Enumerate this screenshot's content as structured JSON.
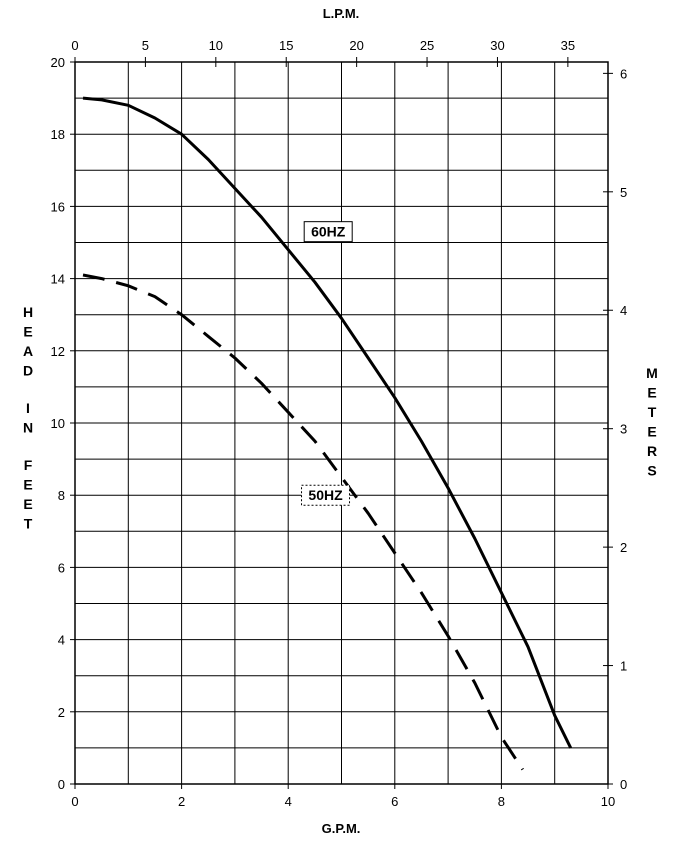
{
  "chart_data": {
    "type": "line",
    "title": "",
    "xlabel": "G.P.M.",
    "x2label": "L.P.M.",
    "ylabel": "HEAD IN FEET",
    "y2label": "METERS",
    "xlim": [
      0,
      10
    ],
    "ylim": [
      0,
      20
    ],
    "x2lim": [
      0,
      37.85
    ],
    "y2lim": [
      0,
      6.096
    ],
    "x_ticks": [
      0,
      2,
      4,
      6,
      8,
      10
    ],
    "y_ticks": [
      0,
      2,
      4,
      6,
      8,
      10,
      12,
      14,
      16,
      18,
      20
    ],
    "x2_ticks": [
      0,
      5,
      10,
      15,
      20,
      25,
      30,
      35
    ],
    "y2_ticks": [
      0,
      1,
      2,
      3,
      4,
      5,
      6
    ],
    "grid": true,
    "series": [
      {
        "name": "60HZ",
        "style": "solid",
        "color": "#000000",
        "x": [
          0.15,
          0.5,
          1.0,
          1.5,
          2.0,
          2.5,
          3.0,
          3.5,
          4.0,
          4.5,
          5.0,
          5.5,
          6.0,
          6.5,
          7.0,
          7.5,
          8.0,
          8.5,
          9.0,
          9.3
        ],
        "y": [
          19.0,
          18.95,
          18.8,
          18.45,
          18.0,
          17.3,
          16.5,
          15.7,
          14.8,
          13.9,
          12.9,
          11.8,
          10.7,
          9.5,
          8.2,
          6.8,
          5.3,
          3.8,
          1.9,
          1.0
        ]
      },
      {
        "name": "50HZ",
        "style": "dashed",
        "color": "#000000",
        "x": [
          0.15,
          0.5,
          1.0,
          1.5,
          2.0,
          2.5,
          3.0,
          3.5,
          4.0,
          4.5,
          5.0,
          5.5,
          6.0,
          6.5,
          7.0,
          7.5,
          8.0,
          8.4
        ],
        "y": [
          14.1,
          14.0,
          13.8,
          13.5,
          13.0,
          12.4,
          11.8,
          11.1,
          10.3,
          9.5,
          8.5,
          7.5,
          6.4,
          5.3,
          4.1,
          2.8,
          1.3,
          0.4
        ]
      }
    ],
    "annotations": [
      "60HZ",
      "50HZ"
    ]
  }
}
